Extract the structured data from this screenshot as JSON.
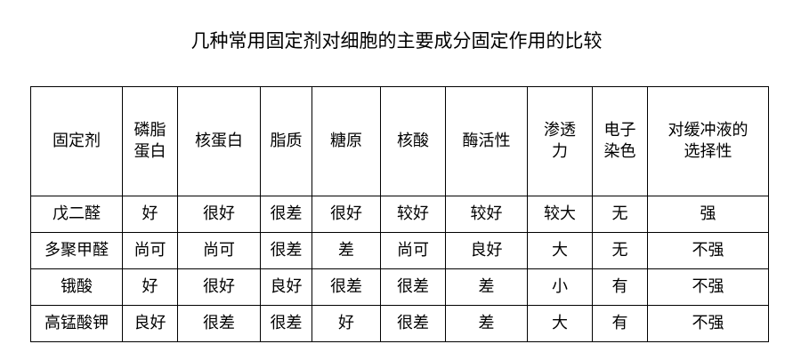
{
  "title": "几种常用固定剂对细胞的主要成分固定作用的比较",
  "headers": [
    "固定剂",
    "磷脂蛋白",
    "核蛋白",
    "脂质",
    "糖原",
    "核酸",
    "酶活性",
    "渗透力",
    "电子染色",
    "对缓冲液的选择性"
  ],
  "header_lines": [
    [
      "固定剂"
    ],
    [
      "磷脂",
      "蛋白"
    ],
    [
      "核蛋白"
    ],
    [
      "脂质"
    ],
    [
      "糖原"
    ],
    [
      "核酸"
    ],
    [
      "酶活性"
    ],
    [
      "渗透",
      "力"
    ],
    [
      "电子",
      "染色"
    ],
    [
      "对缓冲液的",
      "选择性"
    ]
  ],
  "rows": [
    [
      "戊二醛",
      "好",
      "很好",
      "很差",
      "很好",
      "较好",
      "较好",
      "较大",
      "无",
      "强"
    ],
    [
      "多聚甲醛",
      "尚可",
      "尚可",
      "很差",
      "差",
      "尚可",
      "良好",
      "大",
      "无",
      "不强"
    ],
    [
      "锇酸",
      "好",
      "很好",
      "良好",
      "很差",
      "很差",
      "差",
      "小",
      "有",
      "不强"
    ],
    [
      "高锰酸钾",
      "良好",
      "很差",
      "很差",
      "好",
      "很差",
      "差",
      "大",
      "有",
      "不强"
    ]
  ]
}
